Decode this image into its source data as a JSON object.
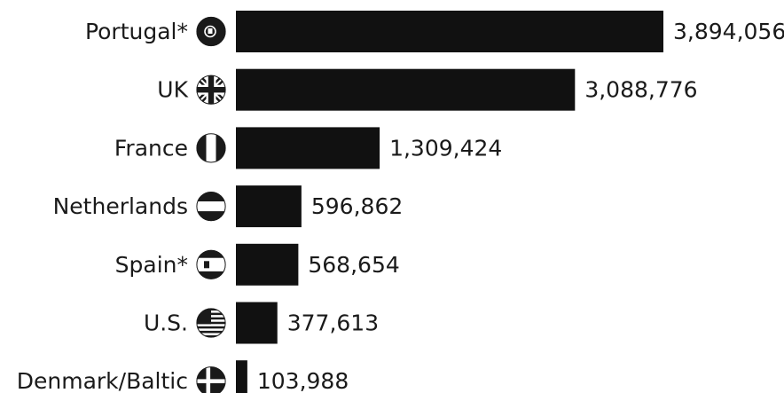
{
  "chart_data": {
    "type": "bar",
    "orientation": "horizontal",
    "categories": [
      "Portugal*",
      "UK",
      "France",
      "Netherlands",
      "Spain*",
      "U.S.",
      "Denmark/Baltic"
    ],
    "flag_icons": [
      "portugal-flag-icon",
      "uk-flag-icon",
      "france-flag-icon",
      "netherlands-flag-icon",
      "spain-flag-icon",
      "us-flag-icon",
      "denmark-flag-icon"
    ],
    "values": [
      3894056,
      3088776,
      1309424,
      596862,
      568654,
      377613,
      103988
    ],
    "value_labels": [
      "3,894,056",
      "3,088,776",
      "1,309,424",
      "596,862",
      "568,654",
      "377,613",
      "103,988"
    ],
    "xlim": [
      0,
      3894056
    ],
    "grid": false,
    "bar_color": "#111111",
    "icon_color": "#1a1a1a"
  }
}
